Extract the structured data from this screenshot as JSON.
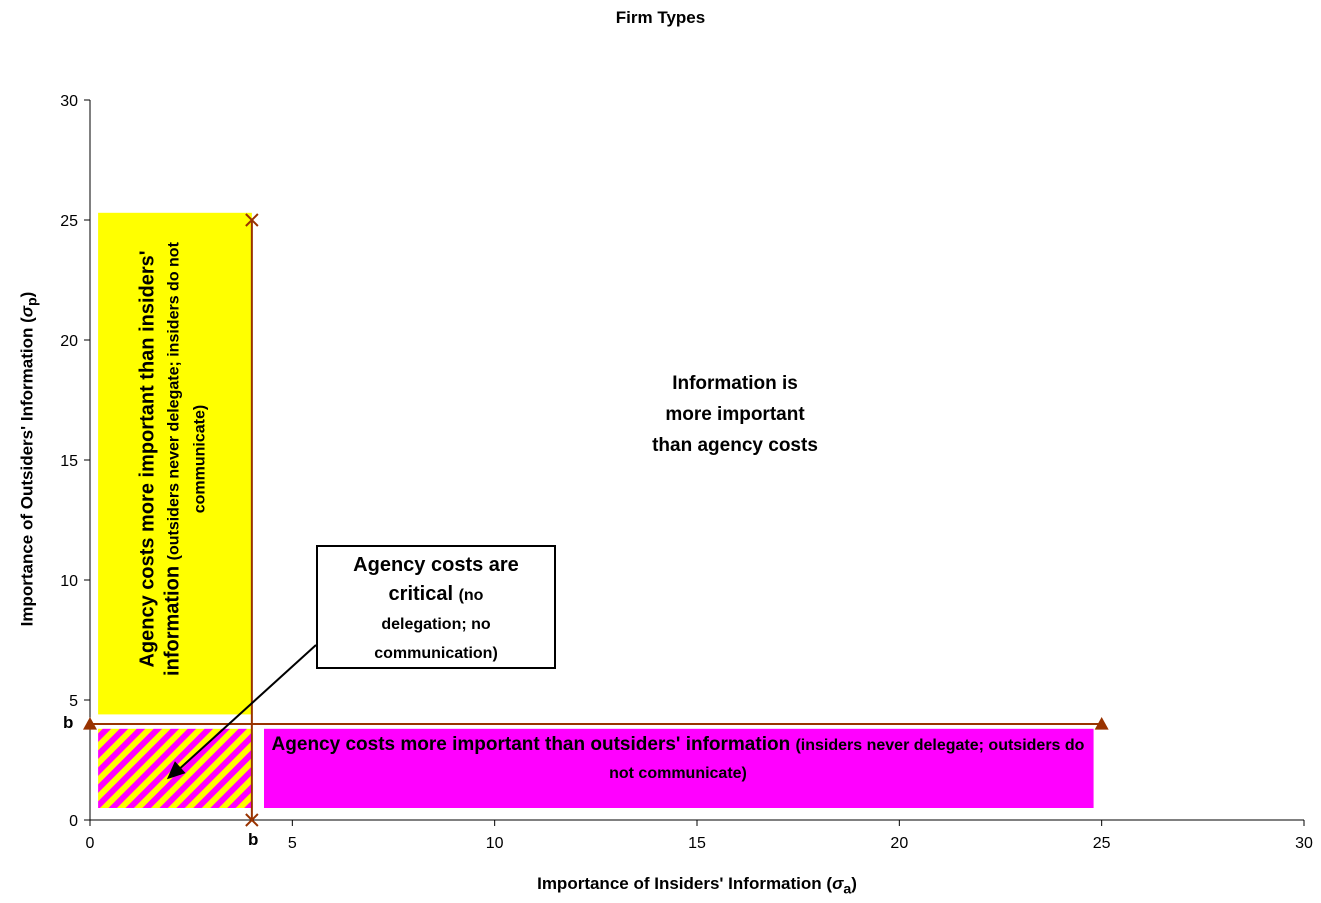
{
  "chart_data": {
    "type": "scatter",
    "title": "Firm Types",
    "xlabel": "Importance of Insiders' Information (",
    "xlabel_symbol": "σ",
    "xlabel_sub": "a",
    "xlabel_close": ")",
    "ylabel": "Importance of Outsiders' Information (",
    "ylabel_symbol": "σ",
    "ylabel_sub": "p",
    "ylabel_close": ")",
    "xlim": [
      0,
      30
    ],
    "ylim": [
      0,
      30
    ],
    "x_ticks": [
      0,
      5,
      10,
      15,
      20,
      25,
      30
    ],
    "y_ticks": [
      0,
      5,
      10,
      15,
      20,
      25,
      30
    ],
    "grid": false,
    "b_value": 4,
    "series": [
      {
        "marker": "x",
        "color": "#993300",
        "points": [
          [
            4,
            0
          ],
          [
            4,
            25
          ]
        ]
      },
      {
        "marker": "triangle",
        "color": "#993300",
        "points": [
          [
            0,
            4
          ],
          [
            25,
            4
          ]
        ]
      }
    ],
    "regions": [
      {
        "id": "yellow",
        "x": [
          0.2,
          4
        ],
        "y": [
          4.4,
          25.3
        ],
        "color": "#ffff00",
        "label_bold": "Agency costs more important than insiders' information",
        "label_small": "(outsiders never delegate; insiders do not communicate)"
      },
      {
        "id": "magenta",
        "x": [
          4.3,
          24.8
        ],
        "y": [
          0.5,
          3.8
        ],
        "color": "#ff00ff",
        "label_bold": "Agency costs more important than outsiders' information",
        "label_small": "(insiders never delegate; outsiders do not communicate)"
      },
      {
        "id": "hatched",
        "x": [
          0.2,
          4
        ],
        "y": [
          0.5,
          3.8
        ],
        "colors": [
          "#ffff00",
          "#ff00ff"
        ]
      }
    ],
    "annotations": {
      "info": "Information is more important than agency costs",
      "info_lines": [
        "Information is",
        "more important",
        "than agency costs"
      ],
      "callout_bold_1": "Agency costs are",
      "callout_bold_2": "critical",
      "callout_small_1": "(no",
      "callout_small_2": "delegation; no",
      "callout_small_3": "communication)",
      "b_x": "b",
      "b_y": "b"
    }
  }
}
